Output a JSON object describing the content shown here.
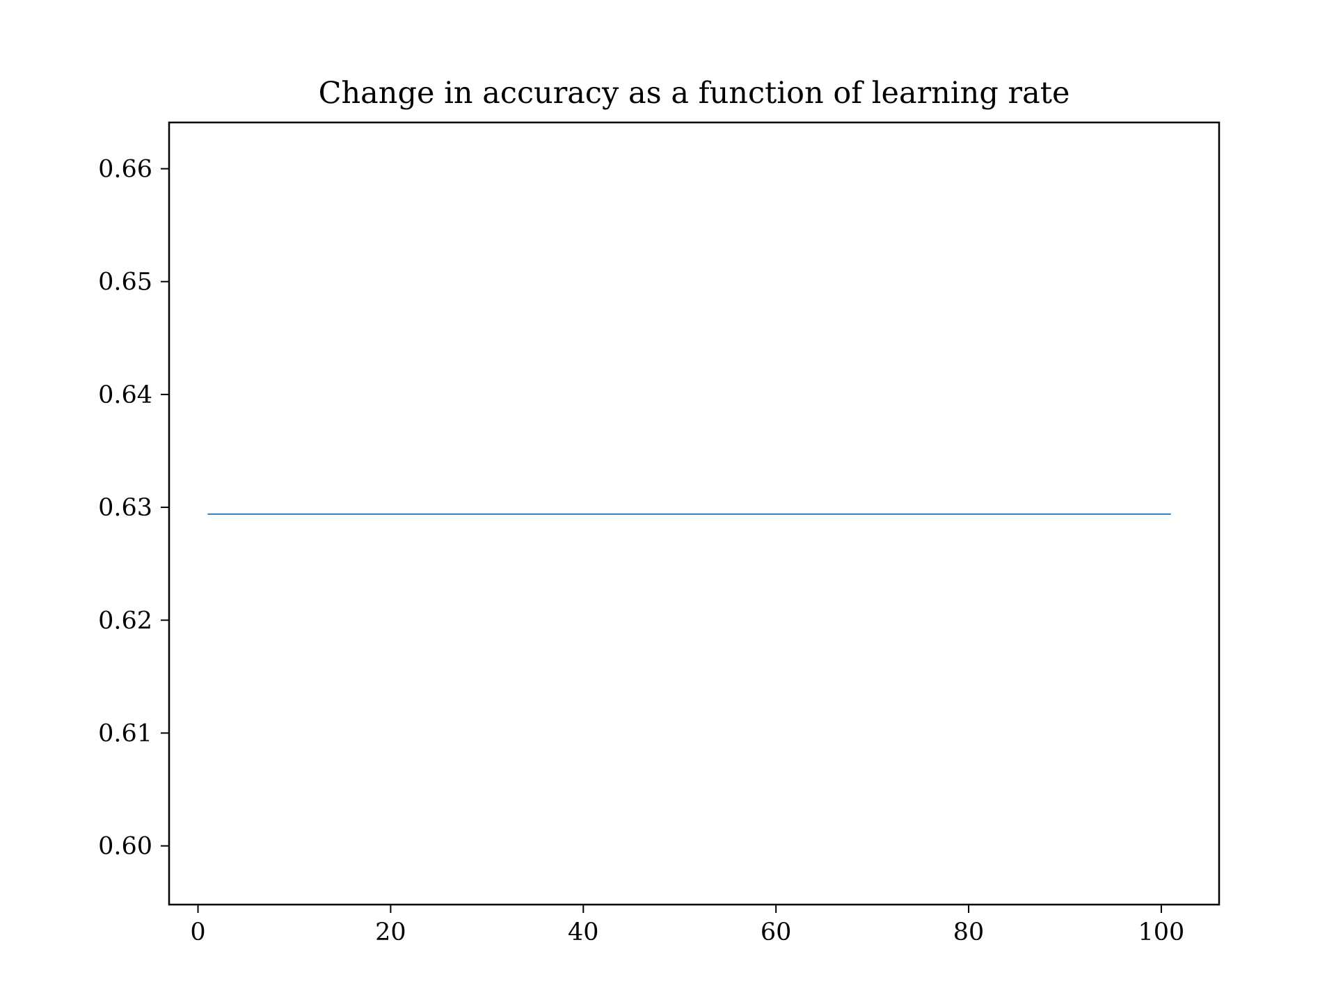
{
  "chart_data": {
    "type": "line",
    "title": "Change in accuracy as a function of learning rate",
    "xlabel": "",
    "ylabel": "",
    "x": [
      1,
      101
    ],
    "series": [
      {
        "values": [
          0.6294,
          0.6294
        ]
      }
    ],
    "xlim": [
      -3.0,
      106.0
    ],
    "ylim": [
      0.5948,
      0.6641
    ],
    "xticks": [
      "0",
      "20",
      "40",
      "60",
      "80",
      "100"
    ],
    "yticks": [
      "0.60",
      "0.61",
      "0.62",
      "0.63",
      "0.64",
      "0.65",
      "0.66"
    ],
    "grid": false,
    "legend": "none",
    "colors": {
      "line": "#1f77b4",
      "axes": "#000000",
      "background": "#ffffff"
    }
  }
}
